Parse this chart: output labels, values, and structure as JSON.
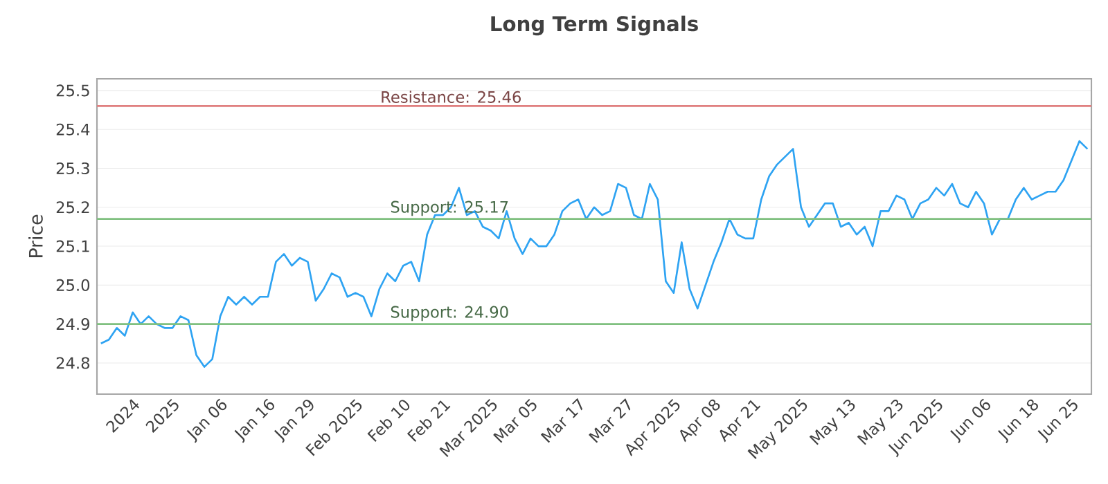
{
  "chart_data": {
    "type": "line",
    "title": "Long Term Signals",
    "ylabel": "Price",
    "categories": [
      null,
      null,
      null,
      null,
      "2024",
      null,
      null,
      null,
      null,
      "2025",
      null,
      null,
      null,
      null,
      null,
      "Jan 06",
      null,
      null,
      null,
      null,
      null,
      "Jan 16",
      null,
      null,
      null,
      null,
      "Jan 29",
      null,
      null,
      null,
      null,
      null,
      "Feb 2025",
      null,
      null,
      null,
      null,
      null,
      "Feb 10",
      null,
      null,
      null,
      null,
      "Feb 21",
      null,
      null,
      null,
      null,
      null,
      "Mar 2025",
      null,
      null,
      null,
      null,
      "Mar 05",
      null,
      null,
      null,
      null,
      null,
      "Mar 17",
      null,
      null,
      null,
      null,
      null,
      "Mar 27",
      null,
      null,
      null,
      null,
      null,
      "Apr 2025",
      null,
      null,
      null,
      null,
      "Apr 08",
      null,
      null,
      null,
      null,
      "Apr 21",
      null,
      null,
      null,
      null,
      null,
      "May 2025",
      null,
      null,
      null,
      null,
      null,
      "May 13",
      null,
      null,
      null,
      null,
      null,
      "May 23",
      null,
      null,
      null,
      null,
      "Jun 2025",
      null,
      null,
      null,
      null,
      null,
      "Jun 06",
      null,
      null,
      null,
      null,
      null,
      "Jun 18",
      null,
      null,
      null,
      null,
      "Jun 25",
      null,
      null
    ],
    "series": [
      {
        "color": "#2ea3f2",
        "values": [
          24.85,
          24.86,
          24.89,
          24.87,
          24.93,
          24.9,
          24.92,
          24.9,
          24.89,
          24.89,
          24.92,
          24.91,
          24.82,
          24.79,
          24.81,
          24.92,
          24.97,
          24.95,
          24.97,
          24.95,
          24.97,
          24.97,
          25.06,
          25.08,
          25.05,
          25.07,
          25.06,
          24.96,
          24.99,
          25.03,
          25.02,
          24.97,
          24.98,
          24.97,
          24.92,
          24.99,
          25.03,
          25.01,
          25.05,
          25.06,
          25.01,
          25.13,
          25.18,
          25.18,
          25.2,
          25.25,
          25.18,
          25.19,
          25.15,
          25.14,
          25.12,
          25.19,
          25.12,
          25.08,
          25.12,
          25.1,
          25.1,
          25.13,
          25.19,
          25.21,
          25.22,
          25.17,
          25.2,
          25.18,
          25.19,
          25.26,
          25.25,
          25.18,
          25.17,
          25.26,
          25.22,
          25.01,
          24.98,
          25.11,
          24.99,
          24.94,
          25.0,
          25.06,
          25.11,
          25.17,
          25.13,
          25.12,
          25.12,
          25.22,
          25.28,
          25.31,
          25.33,
          25.35,
          25.2,
          25.15,
          25.18,
          25.21,
          25.21,
          25.15,
          25.16,
          25.13,
          25.15,
          25.1,
          25.19,
          25.19,
          25.23,
          25.22,
          25.17,
          25.21,
          25.22,
          25.25,
          25.23,
          25.26,
          25.21,
          25.2,
          25.24,
          25.21,
          25.13,
          25.17,
          25.17,
          25.22,
          25.25,
          25.22,
          25.23,
          25.24,
          25.24,
          25.27,
          25.32,
          25.37,
          25.35
        ]
      }
    ],
    "ylim": [
      24.72,
      25.53
    ],
    "yticks": [
      24.8,
      24.9,
      {
        "value": 25.0,
        "label": "25.0"
      },
      25.1,
      25.2,
      25.3,
      25.4,
      25.5
    ],
    "grid": "y",
    "marker": "none",
    "line_style": "solid",
    "ref_lines": [
      {
        "axis": "y",
        "value": 25.46,
        "label": "Resistance: 25.46",
        "color": "#e08080"
      },
      {
        "axis": "y",
        "value": 25.17,
        "label": "Support: 25.17",
        "color": "#80c080"
      },
      {
        "axis": "y",
        "value": 24.9,
        "label": "Support: 24.90",
        "color": "#80c080"
      }
    ]
  }
}
